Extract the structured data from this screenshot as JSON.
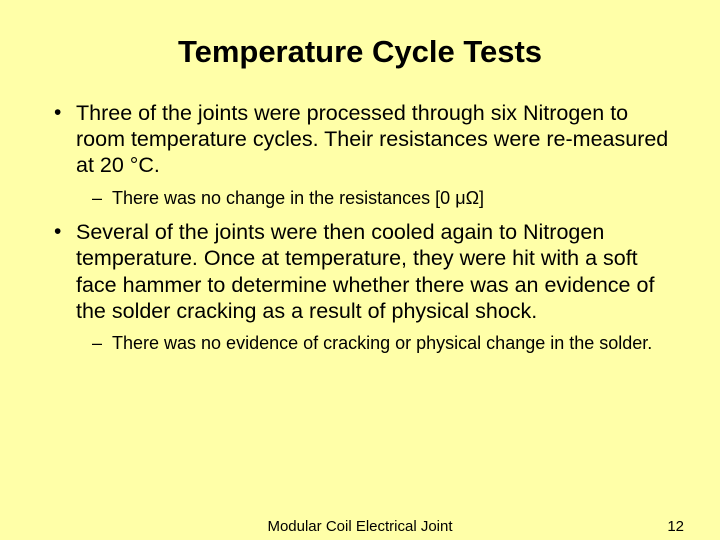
{
  "background_color": "#ffffa8",
  "text_color": "#000000",
  "title": "Temperature Cycle Tests",
  "title_fontsize": 31,
  "body_fontsize": 21.5,
  "sub_fontsize": 18,
  "footer_fontsize": 15,
  "bullets": [
    {
      "text": "Three of the joints were processed through six Nitrogen to room temperature cycles.  Their resistances were re-measured at 20 °C.",
      "sub": [
        "There was no change in the resistances [0 μΩ]"
      ]
    },
    {
      "text": "Several of the joints were then cooled again to Nitrogen temperature.  Once at temperature, they were hit with a soft face hammer to determine whether there was an evidence of the solder cracking as a result of physical shock.",
      "sub": [
        "There was no evidence of cracking or physical change in the solder."
      ]
    }
  ],
  "footer_center": "Modular Coil Electrical Joint",
  "footer_page": "12"
}
